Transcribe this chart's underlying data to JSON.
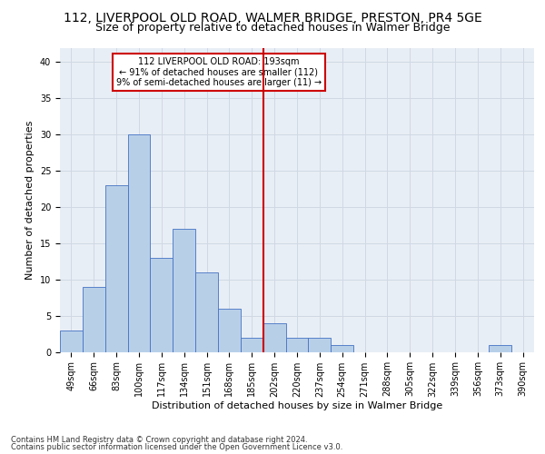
{
  "title": "112, LIVERPOOL OLD ROAD, WALMER BRIDGE, PRESTON, PR4 5GE",
  "subtitle": "Size of property relative to detached houses in Walmer Bridge",
  "xlabel": "Distribution of detached houses by size in Walmer Bridge",
  "ylabel": "Number of detached properties",
  "footer_line1": "Contains HM Land Registry data © Crown copyright and database right 2024.",
  "footer_line2": "Contains public sector information licensed under the Open Government Licence v3.0.",
  "bar_labels": [
    "49sqm",
    "66sqm",
    "83sqm",
    "100sqm",
    "117sqm",
    "134sqm",
    "151sqm",
    "168sqm",
    "185sqm",
    "202sqm",
    "220sqm",
    "237sqm",
    "254sqm",
    "271sqm",
    "288sqm",
    "305sqm",
    "322sqm",
    "339sqm",
    "356sqm",
    "373sqm",
    "390sqm"
  ],
  "bar_values": [
    3,
    9,
    23,
    30,
    13,
    17,
    11,
    6,
    2,
    4,
    2,
    2,
    1,
    0,
    0,
    0,
    0,
    0,
    0,
    1,
    0
  ],
  "bar_color": "#b8cfe8",
  "bar_edge_color": "#4472c4",
  "vline_x": 8.5,
  "vline_color": "#cc0000",
  "annotation_line1": "112 LIVERPOOL OLD ROAD: 193sqm",
  "annotation_line2": "← 91% of detached houses are smaller (112)",
  "annotation_line3": "9% of semi-detached houses are larger (11) →",
  "annotation_box_color": "#ffffff",
  "annotation_box_edge": "#cc0000",
  "ylim": [
    0,
    42
  ],
  "yticks": [
    0,
    5,
    10,
    15,
    20,
    25,
    30,
    35,
    40
  ],
  "grid_color": "#d0d8e4",
  "bg_color": "#e8eef5",
  "title_fontsize": 10,
  "subtitle_fontsize": 9,
  "axis_fontsize": 8,
  "tick_fontsize": 7,
  "footer_fontsize": 6
}
